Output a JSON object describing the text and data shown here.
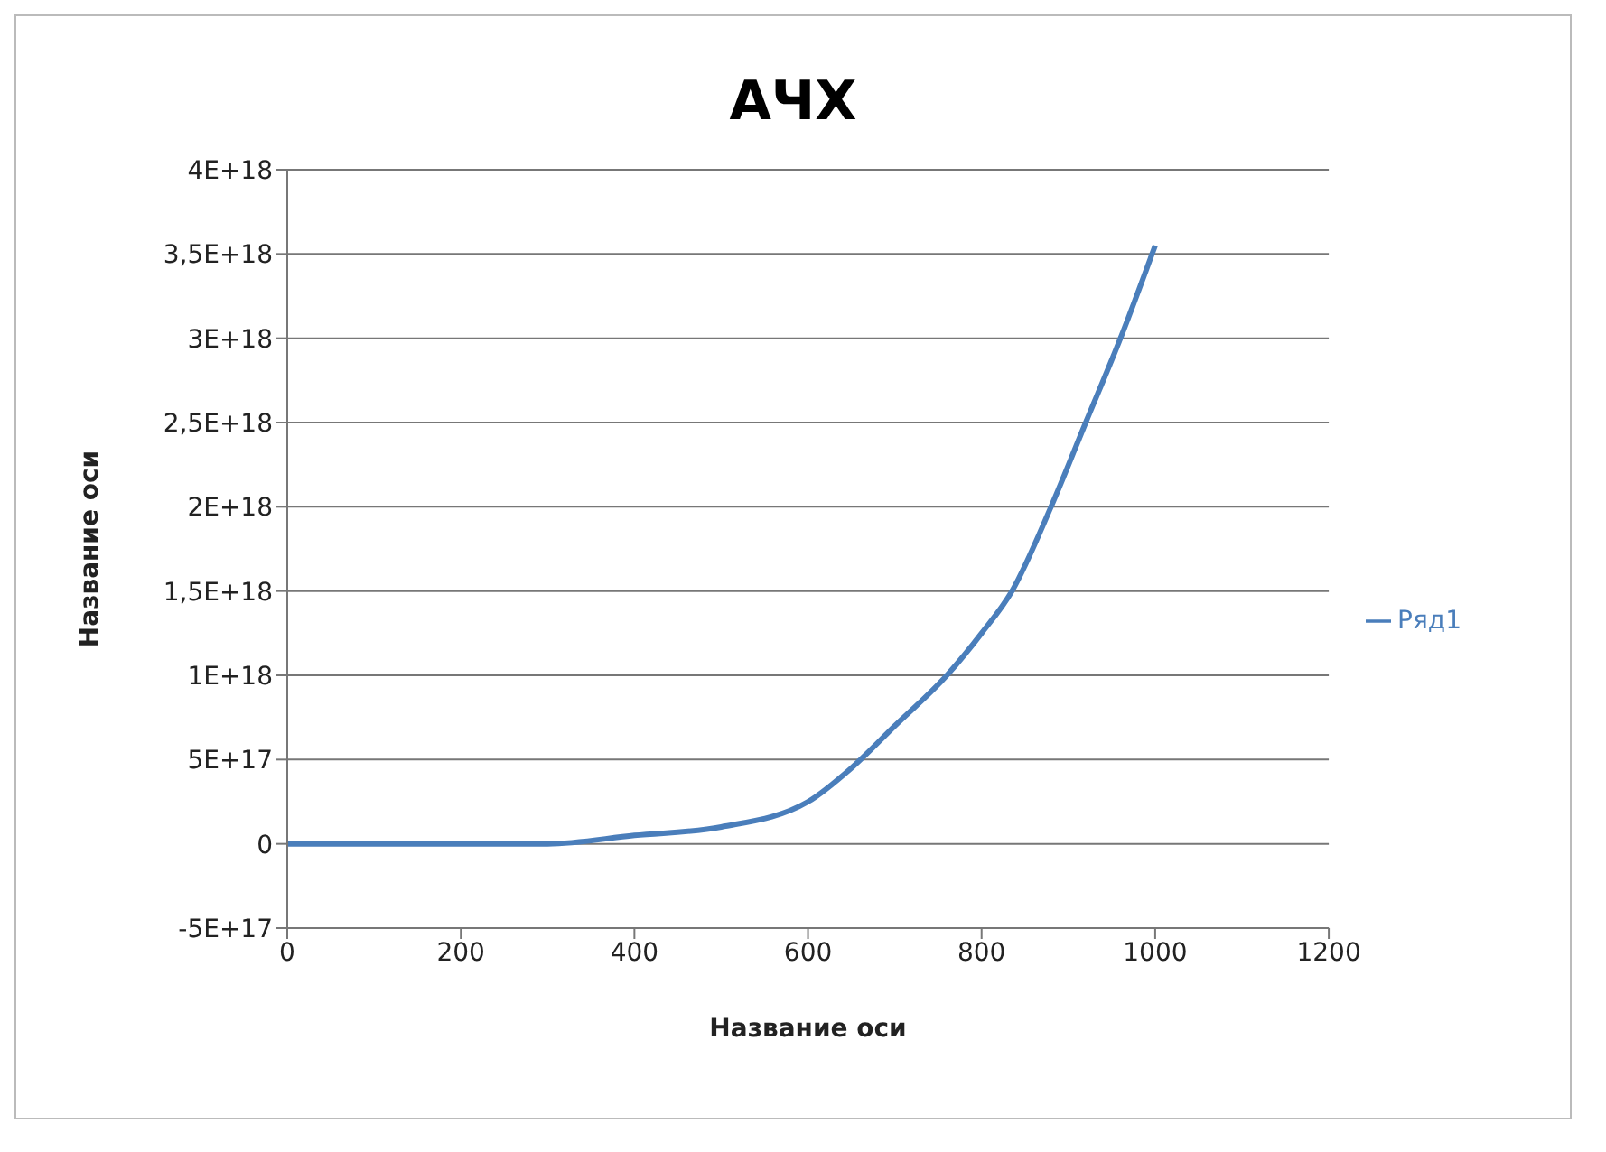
{
  "chart_data": {
    "type": "line",
    "title": "АЧХ",
    "xlabel": "Название оси",
    "ylabel": "Название оси",
    "x": [
      0,
      100,
      200,
      300,
      400,
      500,
      600,
      650,
      700,
      760,
      800,
      835,
      880,
      920,
      960,
      1000
    ],
    "series": [
      {
        "name": "Ряд1",
        "color": "#4a7ebb",
        "values": [
          0,
          0,
          0,
          0,
          5e+16,
          1e+17,
          2.5e+17,
          4.5e+17,
          7e+17,
          1e+18,
          1.25e+18,
          1.5e+18,
          2e+18,
          2.5e+18,
          3e+18,
          3.55e+18
        ]
      }
    ],
    "xlim": [
      0,
      1200
    ],
    "xticks": [
      0,
      200,
      400,
      600,
      800,
      1000,
      1200
    ],
    "ylim": [
      -5e+17,
      4e+18
    ],
    "yticks": [
      {
        "value": -5e+17,
        "label": "-5E+17"
      },
      {
        "value": 0,
        "label": "0"
      },
      {
        "value": 5e+17,
        "label": "5E+17"
      },
      {
        "value": 1e+18,
        "label": "1E+18"
      },
      {
        "value": 1.5e+18,
        "label": "1,5E+18"
      },
      {
        "value": 2e+18,
        "label": "2E+18"
      },
      {
        "value": 2.5e+18,
        "label": "2,5E+18"
      },
      {
        "value": 3e+18,
        "label": "3E+18"
      },
      {
        "value": 3.5e+18,
        "label": "3,5E+18"
      },
      {
        "value": 4e+18,
        "label": "4E+18"
      }
    ],
    "grid": "y",
    "legend": "right",
    "marker": "none",
    "line_style": "solid"
  }
}
